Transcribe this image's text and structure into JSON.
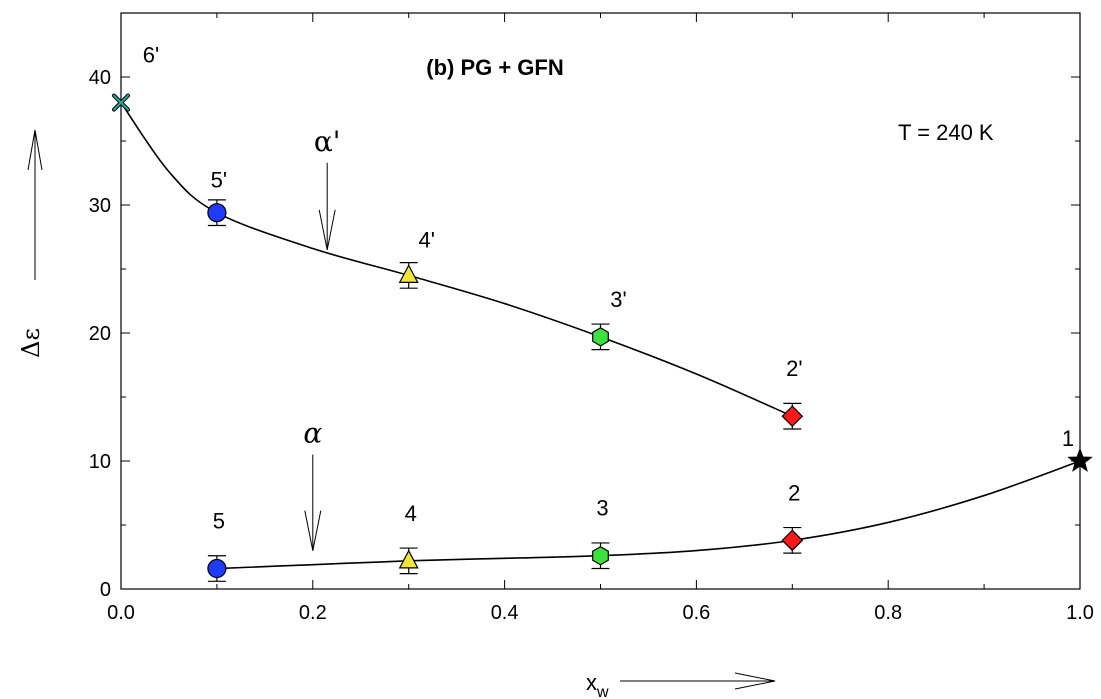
{
  "chart_data": {
    "type": "scatter",
    "title": "(b) PG + GFN",
    "annotation": "T = 240 K",
    "xlabel_main": "x",
    "xlabel_sub": "w",
    "ylabel": "Δε",
    "xlim": [
      0.0,
      1.0
    ],
    "ylim": [
      0,
      45
    ],
    "x_ticks": [
      0.0,
      0.2,
      0.4,
      0.6,
      0.8,
      1.0
    ],
    "x_tick_labels": [
      "0.0",
      "0.2",
      "0.4",
      "0.6",
      "0.8",
      "1.0"
    ],
    "y_ticks": [
      0,
      10,
      20,
      30,
      40
    ],
    "y_tick_labels": [
      "0",
      "10",
      "20",
      "30",
      "40"
    ],
    "grid": false,
    "series": [
      {
        "id": "alpha-prime",
        "points": [
          {
            "x": 0.0,
            "y": 38.0,
            "label": "6'",
            "marker": "x-cross",
            "color": "#2aa198",
            "err": 0
          },
          {
            "x": 0.1,
            "y": 29.4,
            "label": "5'",
            "marker": "circle",
            "color": "#1f3bff",
            "err": 1.0
          },
          {
            "x": 0.3,
            "y": 24.5,
            "label": "4'",
            "marker": "triangle",
            "color": "#f2e53a",
            "err": 1.0
          },
          {
            "x": 0.5,
            "y": 19.7,
            "label": "3'",
            "marker": "hexagon",
            "color": "#3ee03e",
            "err": 1.0
          },
          {
            "x": 0.7,
            "y": 13.5,
            "label": "2'",
            "marker": "diamond",
            "color": "#ff1a1a",
            "err": 1.0
          }
        ],
        "curve": [
          [
            0.0,
            38.0
          ],
          [
            0.05,
            32.6
          ],
          [
            0.1,
            29.4
          ],
          [
            0.2,
            26.6
          ],
          [
            0.3,
            24.5
          ],
          [
            0.4,
            22.3
          ],
          [
            0.5,
            19.7
          ],
          [
            0.6,
            16.8
          ],
          [
            0.7,
            13.5
          ]
        ]
      },
      {
        "id": "alpha",
        "points": [
          {
            "x": 0.1,
            "y": 1.6,
            "label": "5",
            "marker": "circle",
            "color": "#1f3bff",
            "err": 1.0
          },
          {
            "x": 0.3,
            "y": 2.2,
            "label": "4",
            "marker": "triangle",
            "color": "#f2e53a",
            "err": 1.0
          },
          {
            "x": 0.5,
            "y": 2.6,
            "label": "3",
            "marker": "hexagon",
            "color": "#3ee03e",
            "err": 1.0
          },
          {
            "x": 0.7,
            "y": 3.8,
            "label": "2",
            "marker": "diamond",
            "color": "#ff1a1a",
            "err": 1.0
          },
          {
            "x": 1.0,
            "y": 10.0,
            "label": "1",
            "marker": "star",
            "color": "#000000",
            "err": 0
          }
        ],
        "curve": [
          [
            0.1,
            1.6
          ],
          [
            0.2,
            1.9
          ],
          [
            0.3,
            2.2
          ],
          [
            0.4,
            2.4
          ],
          [
            0.5,
            2.6
          ],
          [
            0.6,
            3.0
          ],
          [
            0.7,
            3.8
          ],
          [
            0.8,
            5.2
          ],
          [
            0.9,
            7.3
          ],
          [
            1.0,
            10.0
          ]
        ]
      }
    ],
    "arrows": [
      {
        "label": "α'",
        "x": 0.215,
        "y_top": 33.3,
        "y_bottom": 26.5
      },
      {
        "label": "α",
        "x": 0.2,
        "y_top": 10.5,
        "y_bottom": 3.0
      }
    ]
  }
}
